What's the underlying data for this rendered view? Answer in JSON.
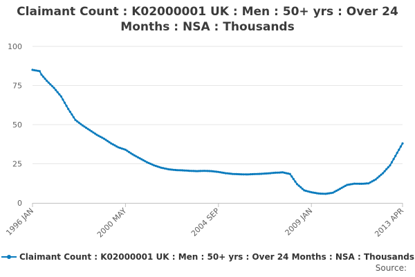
{
  "chart_data": {
    "type": "line",
    "title_lines": [
      "Claimant Count : K02000001 UK : Men : 50+ yrs : Over 24",
      "Months : NSA : Thousands"
    ],
    "xlabel": "",
    "ylabel": "",
    "ylim": [
      0,
      100
    ],
    "y_ticks": [
      "0",
      "25",
      "50",
      "75",
      "100"
    ],
    "x_range": [
      "1996 JAN",
      "2013 APR"
    ],
    "x_ticks": [
      "1996 JAN",
      "2000 MAY",
      "2004 SEP",
      "2009 JAN",
      "2013 APR"
    ],
    "grid": "horizontal",
    "legend_position": "bottom",
    "series": [
      {
        "name": "Claimant Count : K02000001 UK : Men : 50+ yrs : Over 24 Months : NSA : Thousands",
        "color": "#0a7bbd",
        "x": [
          "1996 JAN",
          "1996 MAY",
          "1996 JUN",
          "1996 SEP",
          "1997 JAN",
          "1997 MAY",
          "1997 SEP",
          "1998 JAN",
          "1998 MAY",
          "1998 SEP",
          "1999 JAN",
          "1999 MAY",
          "1999 SEP",
          "2000 JAN",
          "2000 MAY",
          "2000 SEP",
          "2001 JAN",
          "2001 MAY",
          "2001 SEP",
          "2002 JAN",
          "2002 MAY",
          "2002 SEP",
          "2003 JAN",
          "2003 MAY",
          "2003 SEP",
          "2004 JAN",
          "2004 MAY",
          "2004 SEP",
          "2005 JAN",
          "2005 MAY",
          "2005 SEP",
          "2006 JAN",
          "2006 MAY",
          "2006 SEP",
          "2007 JAN",
          "2007 MAY",
          "2007 SEP",
          "2008 JAN",
          "2008 MAY",
          "2008 SEP",
          "2009 JAN",
          "2009 MAY",
          "2009 SEP",
          "2010 JAN",
          "2010 MAY",
          "2010 SEP",
          "2011 JAN",
          "2011 MAY",
          "2011 SEP",
          "2012 JAN",
          "2012 MAY",
          "2012 SEP",
          "2013 JAN",
          "2013 APR"
        ],
        "values": [
          85.0,
          84.2,
          82.0,
          78.0,
          73.5,
          68.0,
          60.0,
          53.0,
          49.5,
          46.5,
          43.5,
          41.0,
          38.0,
          35.5,
          34.0,
          31.0,
          28.5,
          26.0,
          24.0,
          22.5,
          21.5,
          21.0,
          20.8,
          20.5,
          20.3,
          20.5,
          20.3,
          19.8,
          19.0,
          18.5,
          18.3,
          18.2,
          18.4,
          18.6,
          18.9,
          19.3,
          19.5,
          18.5,
          12.0,
          8.0,
          6.8,
          6.0,
          5.8,
          6.5,
          9.0,
          11.5,
          12.3,
          12.2,
          12.5,
          15.0,
          19.0,
          24.0,
          32.0,
          38.0
        ]
      }
    ]
  },
  "legend": {
    "label": "Claimant Count : K02000001 UK : Men : 50+ yrs : Over 24 Months : NSA : Thousands"
  },
  "footer": {
    "source_label": "Source:"
  }
}
